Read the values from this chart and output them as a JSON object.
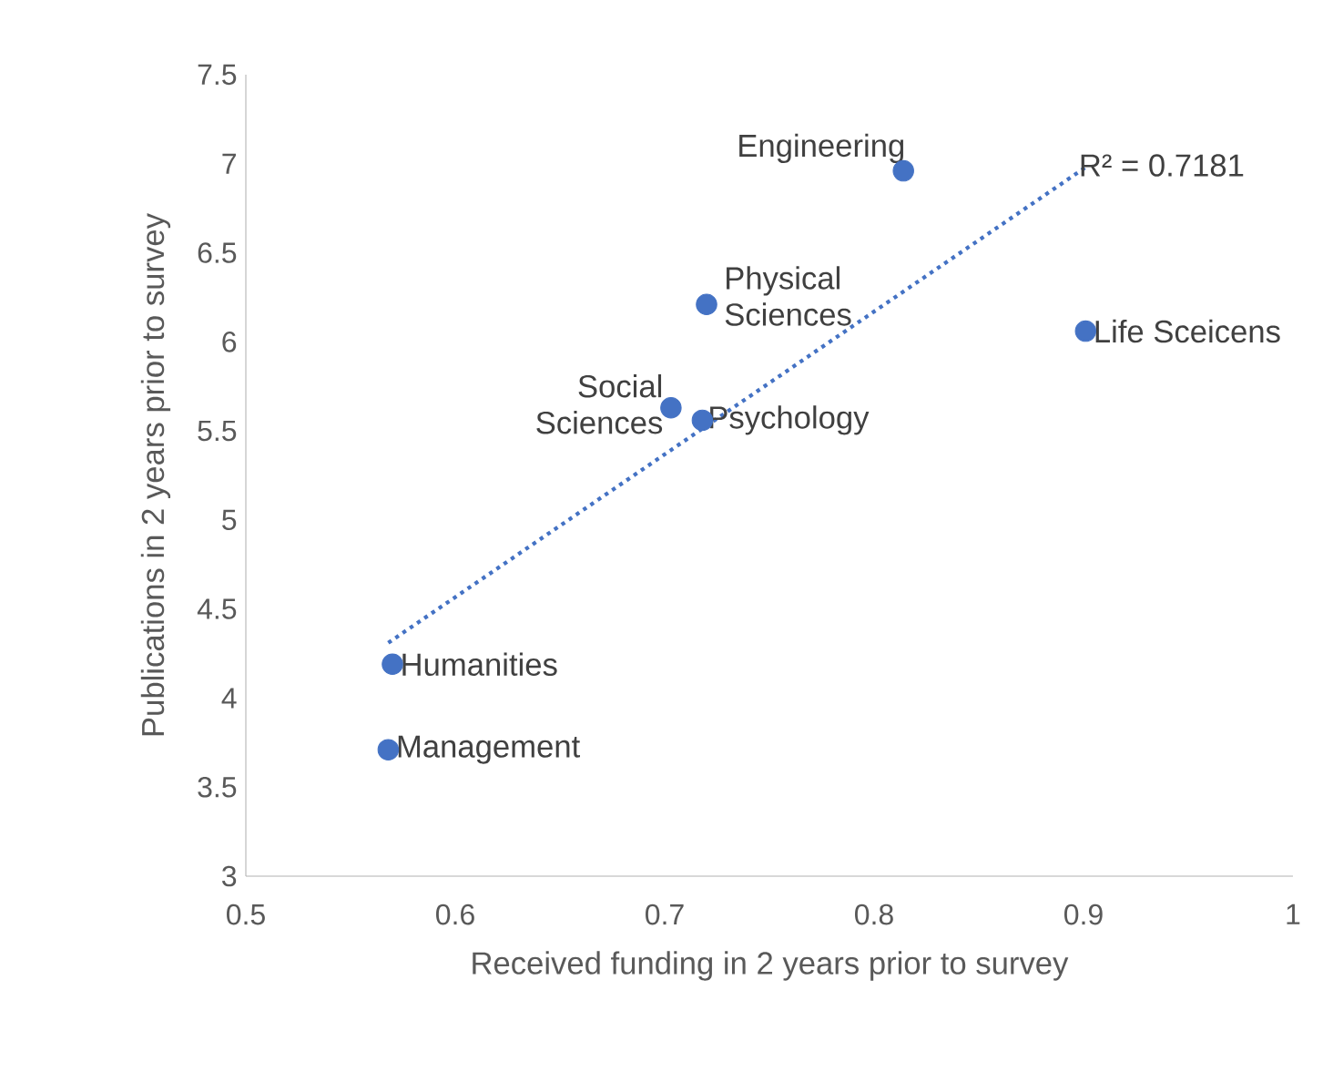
{
  "chart_data": {
    "type": "scatter",
    "xlabel": "Received funding in 2 years prior to survey",
    "ylabel": "Publications in 2 years prior to survey",
    "xlim": [
      0.5,
      1
    ],
    "xticks": [
      0.5,
      0.6,
      0.7,
      0.8,
      0.9,
      1
    ],
    "ylim": [
      3,
      7.5
    ],
    "yticks": [
      3,
      3.5,
      4,
      4.5,
      5,
      5.5,
      6,
      6.5,
      7,
      7.5
    ],
    "grid": false,
    "series": [
      {
        "color": "#4472c4",
        "marker": "circle",
        "x": [
          0.814,
          0.901,
          0.72,
          0.703,
          0.718,
          0.57,
          0.568
        ],
        "values": [
          6.96,
          6.06,
          6.21,
          5.63,
          5.56,
          4.19,
          3.71
        ]
      },
      {
        "type": "line",
        "color": "#4472c4",
        "line_style": "dotted",
        "marker": "none",
        "x": [
          0.568,
          0.901
        ],
        "values": [
          4.31,
          6.98
        ]
      }
    ],
    "annotations": [
      {
        "text": "Engineering",
        "x": 0.814,
        "y": 6.96
      },
      {
        "text": "Life Sceicens",
        "x": 0.901,
        "y": 6.06
      },
      {
        "text": "Physical Sciences",
        "x": 0.72,
        "y": 6.21
      },
      {
        "text": "Social Sciences",
        "x": 0.703,
        "y": 5.63
      },
      {
        "text": "Psychology",
        "x": 0.718,
        "y": 5.56
      },
      {
        "text": "Humanities",
        "x": 0.57,
        "y": 4.19
      },
      {
        "text": "Management",
        "x": 0.568,
        "y": 3.71
      },
      {
        "text": "R² = 0.7181",
        "x": 0.901,
        "y": 6.98
      }
    ]
  }
}
